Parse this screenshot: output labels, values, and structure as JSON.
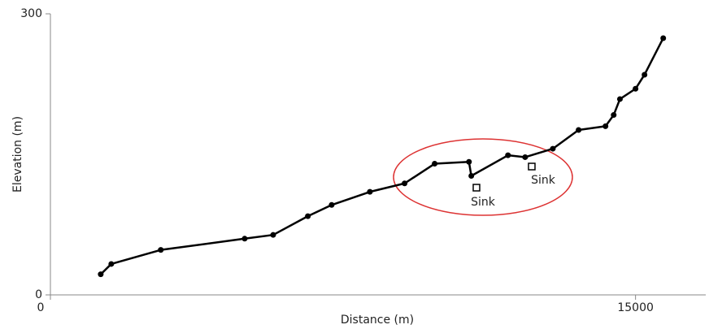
{
  "chart_data": {
    "type": "line",
    "x_label": "Distance (m)",
    "y_label": "Elevation (m)",
    "x": [
      1290,
      1560,
      2830,
      4980,
      5710,
      6600,
      7210,
      8190,
      9080,
      9850,
      10730,
      10790,
      11730,
      12170,
      12880,
      13540,
      14230,
      14440,
      14600,
      15000,
      15230,
      15710
    ],
    "series": [
      {
        "name": "Elevation",
        "color": "#000000",
        "values": [
          22,
          33,
          48,
          60,
          64,
          84,
          96,
          110,
          119,
          140,
          142,
          127,
          149,
          147,
          156,
          176,
          180,
          192,
          209,
          220,
          235,
          274
        ]
      }
    ],
    "annotations": [
      "Sink",
      "Sink"
    ],
    "xlim": [
      0,
      16800
    ],
    "xticks": [
      0,
      15000
    ],
    "ylim": [
      0,
      300
    ],
    "yticks": [
      0,
      300
    ]
  }
}
